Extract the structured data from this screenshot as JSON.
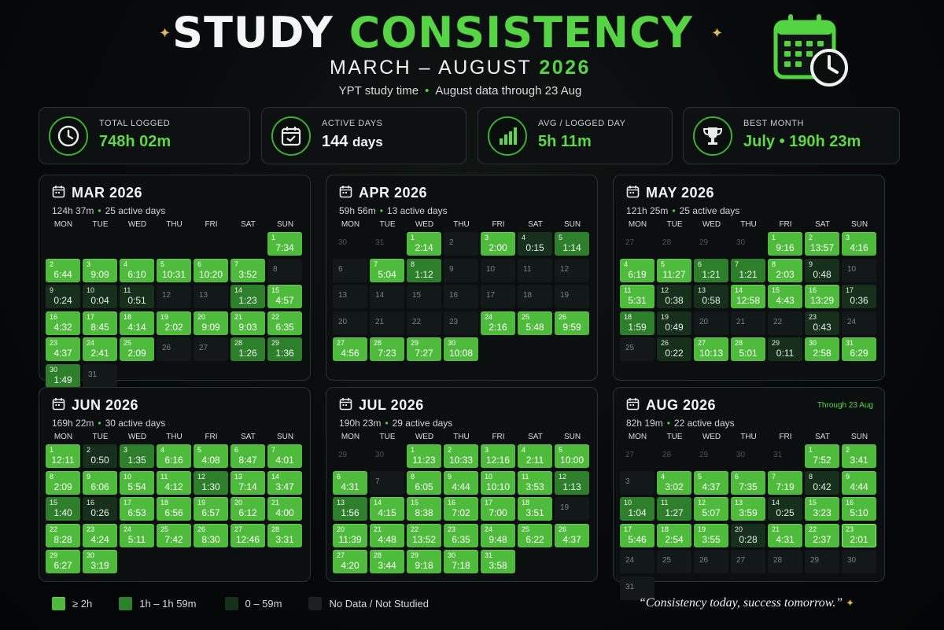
{
  "header": {
    "title_white": "STUDY",
    "title_green": "CONSISTENCY",
    "subtitle_text": "MARCH – AUGUST",
    "subtitle_year": "2026",
    "tagline_a": "YPT study time",
    "tagline_dot": "•",
    "tagline_b": "August data through 23 Aug"
  },
  "icons": {
    "sparkle": "✦"
  },
  "colors": {
    "accent": "#57d445",
    "level_2h_plus": "#4fbb3c",
    "level_1h": "#2e7f2b",
    "level_under_1h": "#17301b",
    "level_none": "#131919"
  },
  "stats": [
    {
      "label": "TOTAL LOGGED",
      "value": "748h 02m",
      "icon": "clock-icon",
      "style": "green"
    },
    {
      "label": "ACTIVE DAYS",
      "value": "144",
      "unit": "days",
      "icon": "calendar-check-icon",
      "style": "white"
    },
    {
      "label": "AVG / LOGGED DAY",
      "value": "5h 11m",
      "icon": "bar-chart-icon",
      "style": "green"
    },
    {
      "label": "BEST MONTH",
      "value": "July • 190h 23m",
      "icon": "trophy-icon",
      "style": "green"
    }
  ],
  "weekdays": [
    "MON",
    "TUE",
    "WED",
    "THU",
    "FRI",
    "SAT",
    "SUN"
  ],
  "months": [
    {
      "name": "MAR 2026",
      "total": "124h 37m",
      "active": "25 active days",
      "note": "",
      "cells": [
        {
          "d": "",
          "t": "",
          "l": "x"
        },
        {
          "d": "",
          "t": "",
          "l": "x"
        },
        {
          "d": "",
          "t": "",
          "l": "x"
        },
        {
          "d": "",
          "t": "",
          "l": "x"
        },
        {
          "d": "",
          "t": "",
          "l": "x"
        },
        {
          "d": "",
          "t": "",
          "l": "x"
        },
        {
          "d": "1",
          "t": "7:34",
          "l": 3
        },
        {
          "d": "2",
          "t": "6:44",
          "l": 3
        },
        {
          "d": "3",
          "t": "9:09",
          "l": 3
        },
        {
          "d": "4",
          "t": "6:10",
          "l": 3
        },
        {
          "d": "5",
          "t": "10:31",
          "l": 3
        },
        {
          "d": "6",
          "t": "10:20",
          "l": 3
        },
        {
          "d": "7",
          "t": "3:52",
          "l": 3
        },
        {
          "d": "8",
          "t": "",
          "l": 0
        },
        {
          "d": "9",
          "t": "0:24",
          "l": 1
        },
        {
          "d": "10",
          "t": "0:04",
          "l": 1
        },
        {
          "d": "11",
          "t": "0:51",
          "l": 1
        },
        {
          "d": "12",
          "t": "",
          "l": 0
        },
        {
          "d": "13",
          "t": "",
          "l": 0
        },
        {
          "d": "14",
          "t": "1:23",
          "l": 2
        },
        {
          "d": "15",
          "t": "4:57",
          "l": 3
        },
        {
          "d": "16",
          "t": "4:32",
          "l": 3
        },
        {
          "d": "17",
          "t": "8:45",
          "l": 3
        },
        {
          "d": "18",
          "t": "4:14",
          "l": 3
        },
        {
          "d": "19",
          "t": "2:02",
          "l": 3
        },
        {
          "d": "20",
          "t": "9:09",
          "l": 3
        },
        {
          "d": "21",
          "t": "9:03",
          "l": 3
        },
        {
          "d": "22",
          "t": "6:35",
          "l": 3
        },
        {
          "d": "23",
          "t": "4:37",
          "l": 3
        },
        {
          "d": "24",
          "t": "2:41",
          "l": 3
        },
        {
          "d": "25",
          "t": "2:09",
          "l": 3
        },
        {
          "d": "26",
          "t": "",
          "l": 0
        },
        {
          "d": "27",
          "t": "",
          "l": 0
        },
        {
          "d": "28",
          "t": "1:26",
          "l": 2
        },
        {
          "d": "29",
          "t": "1:36",
          "l": 2
        },
        {
          "d": "30",
          "t": "1:49",
          "l": 2
        },
        {
          "d": "31",
          "t": "",
          "l": 0
        }
      ]
    },
    {
      "name": "APR 2026",
      "total": "59h 56m",
      "active": "13 active days",
      "note": "",
      "cells": [
        {
          "d": "30",
          "t": "",
          "l": "x"
        },
        {
          "d": "31",
          "t": "",
          "l": "x"
        },
        {
          "d": "1",
          "t": "2:14",
          "l": 3
        },
        {
          "d": "2",
          "t": "",
          "l": 0
        },
        {
          "d": "3",
          "t": "2:00",
          "l": 3
        },
        {
          "d": "4",
          "t": "0:15",
          "l": 1
        },
        {
          "d": "5",
          "t": "1:14",
          "l": 2
        },
        {
          "d": "6",
          "t": "",
          "l": 0
        },
        {
          "d": "7",
          "t": "5:04",
          "l": 3
        },
        {
          "d": "8",
          "t": "1:12",
          "l": 2
        },
        {
          "d": "9",
          "t": "",
          "l": 0
        },
        {
          "d": "10",
          "t": "",
          "l": 0
        },
        {
          "d": "11",
          "t": "",
          "l": 0
        },
        {
          "d": "12",
          "t": "",
          "l": 0
        },
        {
          "d": "13",
          "t": "",
          "l": 0
        },
        {
          "d": "14",
          "t": "",
          "l": 0
        },
        {
          "d": "15",
          "t": "",
          "l": 0
        },
        {
          "d": "16",
          "t": "",
          "l": 0
        },
        {
          "d": "17",
          "t": "",
          "l": 0
        },
        {
          "d": "18",
          "t": "",
          "l": 0
        },
        {
          "d": "19",
          "t": "",
          "l": 0
        },
        {
          "d": "20",
          "t": "",
          "l": 0
        },
        {
          "d": "21",
          "t": "",
          "l": 0
        },
        {
          "d": "22",
          "t": "",
          "l": 0
        },
        {
          "d": "23",
          "t": "",
          "l": 0
        },
        {
          "d": "24",
          "t": "2:16",
          "l": 3
        },
        {
          "d": "25",
          "t": "5:48",
          "l": 3
        },
        {
          "d": "26",
          "t": "9:59",
          "l": 3
        },
        {
          "d": "27",
          "t": "4:56",
          "l": 3
        },
        {
          "d": "28",
          "t": "7:23",
          "l": 3
        },
        {
          "d": "29",
          "t": "7:27",
          "l": 3
        },
        {
          "d": "30",
          "t": "10:08",
          "l": 3
        }
      ]
    },
    {
      "name": "MAY 2026",
      "total": "121h 25m",
      "active": "25 active days",
      "note": "",
      "cells": [
        {
          "d": "27",
          "t": "",
          "l": "x"
        },
        {
          "d": "28",
          "t": "",
          "l": "x"
        },
        {
          "d": "29",
          "t": "",
          "l": "x"
        },
        {
          "d": "30",
          "t": "",
          "l": "x"
        },
        {
          "d": "1",
          "t": "9:16",
          "l": 3
        },
        {
          "d": "2",
          "t": "13:57",
          "l": 3
        },
        {
          "d": "3",
          "t": "4:16",
          "l": 3
        },
        {
          "d": "4",
          "t": "6:19",
          "l": 3
        },
        {
          "d": "5",
          "t": "11:27",
          "l": 3
        },
        {
          "d": "6",
          "t": "1:21",
          "l": 2
        },
        {
          "d": "7",
          "t": "1:21",
          "l": 2
        },
        {
          "d": "8",
          "t": "2:03",
          "l": 3
        },
        {
          "d": "9",
          "t": "0:48",
          "l": 1
        },
        {
          "d": "10",
          "t": "",
          "l": 0
        },
        {
          "d": "11",
          "t": "5:31",
          "l": 3
        },
        {
          "d": "12",
          "t": "0:38",
          "l": 1
        },
        {
          "d": "13",
          "t": "0:58",
          "l": 1
        },
        {
          "d": "14",
          "t": "12:58",
          "l": 3
        },
        {
          "d": "15",
          "t": "4:43",
          "l": 3
        },
        {
          "d": "16",
          "t": "13:29",
          "l": 3
        },
        {
          "d": "17",
          "t": "0:36",
          "l": 1
        },
        {
          "d": "18",
          "t": "1:59",
          "l": 2
        },
        {
          "d": "19",
          "t": "0:49",
          "l": 1
        },
        {
          "d": "20",
          "t": "",
          "l": 0
        },
        {
          "d": "21",
          "t": "",
          "l": 0
        },
        {
          "d": "22",
          "t": "",
          "l": 0
        },
        {
          "d": "23",
          "t": "0:43",
          "l": 1
        },
        {
          "d": "24",
          "t": "",
          "l": 0
        },
        {
          "d": "25",
          "t": "",
          "l": 0
        },
        {
          "d": "26",
          "t": "0:22",
          "l": 1
        },
        {
          "d": "27",
          "t": "10:13",
          "l": 3
        },
        {
          "d": "28",
          "t": "5:01",
          "l": 3
        },
        {
          "d": "29",
          "t": "0:11",
          "l": 1
        },
        {
          "d": "30",
          "t": "2:58",
          "l": 3
        },
        {
          "d": "31",
          "t": "6:29",
          "l": 3
        }
      ]
    },
    {
      "name": "JUN 2026",
      "total": "169h 22m",
      "active": "30 active days",
      "note": "",
      "cells": [
        {
          "d": "1",
          "t": "12:11",
          "l": 3
        },
        {
          "d": "2",
          "t": "0:50",
          "l": 1
        },
        {
          "d": "3",
          "t": "1:35",
          "l": 2
        },
        {
          "d": "4",
          "t": "6:16",
          "l": 3
        },
        {
          "d": "5",
          "t": "4:08",
          "l": 3
        },
        {
          "d": "6",
          "t": "8:47",
          "l": 3
        },
        {
          "d": "7",
          "t": "4:01",
          "l": 3
        },
        {
          "d": "8",
          "t": "2:09",
          "l": 3
        },
        {
          "d": "9",
          "t": "6:06",
          "l": 3
        },
        {
          "d": "10",
          "t": "5:54",
          "l": 3
        },
        {
          "d": "11",
          "t": "4:12",
          "l": 3
        },
        {
          "d": "12",
          "t": "1:30",
          "l": 2
        },
        {
          "d": "13",
          "t": "7:14",
          "l": 3
        },
        {
          "d": "14",
          "t": "3:47",
          "l": 3
        },
        {
          "d": "15",
          "t": "1:40",
          "l": 2
        },
        {
          "d": "16",
          "t": "0:26",
          "l": 1
        },
        {
          "d": "17",
          "t": "6:53",
          "l": 3
        },
        {
          "d": "18",
          "t": "6:56",
          "l": 3
        },
        {
          "d": "19",
          "t": "6:57",
          "l": 3
        },
        {
          "d": "20",
          "t": "6:12",
          "l": 3
        },
        {
          "d": "21",
          "t": "4:00",
          "l": 3
        },
        {
          "d": "22",
          "t": "8:28",
          "l": 3
        },
        {
          "d": "23",
          "t": "4:24",
          "l": 3
        },
        {
          "d": "24",
          "t": "5:11",
          "l": 3
        },
        {
          "d": "25",
          "t": "7:42",
          "l": 3
        },
        {
          "d": "26",
          "t": "8:30",
          "l": 3
        },
        {
          "d": "27",
          "t": "12:46",
          "l": 3
        },
        {
          "d": "28",
          "t": "3:31",
          "l": 3
        },
        {
          "d": "29",
          "t": "6:27",
          "l": 3
        },
        {
          "d": "30",
          "t": "3:19",
          "l": 3
        }
      ]
    },
    {
      "name": "JUL 2026",
      "total": "190h 23m",
      "active": "29 active days",
      "note": "",
      "cells": [
        {
          "d": "29",
          "t": "",
          "l": "x"
        },
        {
          "d": "30",
          "t": "",
          "l": "x"
        },
        {
          "d": "1",
          "t": "11:23",
          "l": 3
        },
        {
          "d": "2",
          "t": "10:33",
          "l": 3
        },
        {
          "d": "3",
          "t": "12:16",
          "l": 3
        },
        {
          "d": "4",
          "t": "2:11",
          "l": 3
        },
        {
          "d": "5",
          "t": "10:00",
          "l": 3
        },
        {
          "d": "6",
          "t": "4:31",
          "l": 3
        },
        {
          "d": "7",
          "t": "",
          "l": 0
        },
        {
          "d": "8",
          "t": "6:05",
          "l": 3
        },
        {
          "d": "9",
          "t": "4:44",
          "l": 3
        },
        {
          "d": "10",
          "t": "10:10",
          "l": 3
        },
        {
          "d": "11",
          "t": "3:53",
          "l": 3
        },
        {
          "d": "12",
          "t": "1:13",
          "l": 2
        },
        {
          "d": "13",
          "t": "1:56",
          "l": 2
        },
        {
          "d": "14",
          "t": "4:15",
          "l": 3
        },
        {
          "d": "15",
          "t": "8:38",
          "l": 3
        },
        {
          "d": "16",
          "t": "7:02",
          "l": 3
        },
        {
          "d": "17",
          "t": "7:00",
          "l": 3
        },
        {
          "d": "18",
          "t": "3:51",
          "l": 3
        },
        {
          "d": "19",
          "t": "",
          "l": 0
        },
        {
          "d": "20",
          "t": "11:39",
          "l": 3
        },
        {
          "d": "21",
          "t": "4:48",
          "l": 3
        },
        {
          "d": "22",
          "t": "13:52",
          "l": 3
        },
        {
          "d": "23",
          "t": "6:35",
          "l": 3
        },
        {
          "d": "24",
          "t": "9:48",
          "l": 3
        },
        {
          "d": "25",
          "t": "6:22",
          "l": 3
        },
        {
          "d": "26",
          "t": "4:37",
          "l": 3
        },
        {
          "d": "27",
          "t": "4:20",
          "l": 3
        },
        {
          "d": "28",
          "t": "3:44",
          "l": 3
        },
        {
          "d": "29",
          "t": "9:18",
          "l": 3
        },
        {
          "d": "30",
          "t": "7:18",
          "l": 3
        },
        {
          "d": "31",
          "t": "3:58",
          "l": 3
        }
      ]
    },
    {
      "name": "AUG 2026",
      "total": "82h 19m",
      "active": "22 active days",
      "note": "Through 23 Aug",
      "cells": [
        {
          "d": "27",
          "t": "",
          "l": "x"
        },
        {
          "d": "28",
          "t": "",
          "l": "x"
        },
        {
          "d": "29",
          "t": "",
          "l": "x"
        },
        {
          "d": "30",
          "t": "",
          "l": "x"
        },
        {
          "d": "31",
          "t": "",
          "l": "x"
        },
        {
          "d": "1",
          "t": "7:52",
          "l": 3
        },
        {
          "d": "2",
          "t": "3:41",
          "l": 3
        },
        {
          "d": "3",
          "t": "",
          "l": 0
        },
        {
          "d": "4",
          "t": "3:02",
          "l": 3
        },
        {
          "d": "5",
          "t": "4:37",
          "l": 3
        },
        {
          "d": "6",
          "t": "7:35",
          "l": 3
        },
        {
          "d": "7",
          "t": "7:19",
          "l": 3
        },
        {
          "d": "8",
          "t": "0:42",
          "l": 1
        },
        {
          "d": "9",
          "t": "4:44",
          "l": 3
        },
        {
          "d": "10",
          "t": "1:04",
          "l": 2
        },
        {
          "d": "11",
          "t": "1:27",
          "l": 2
        },
        {
          "d": "12",
          "t": "5:07",
          "l": 3
        },
        {
          "d": "13",
          "t": "3:59",
          "l": 3
        },
        {
          "d": "14",
          "t": "0:25",
          "l": 1
        },
        {
          "d": "15",
          "t": "3:23",
          "l": 3
        },
        {
          "d": "16",
          "t": "5:10",
          "l": 3
        },
        {
          "d": "17",
          "t": "5:46",
          "l": 3
        },
        {
          "d": "18",
          "t": "2:54",
          "l": 3
        },
        {
          "d": "19",
          "t": "3:55",
          "l": 3
        },
        {
          "d": "20",
          "t": "0:28",
          "l": 1
        },
        {
          "d": "21",
          "t": "4:31",
          "l": 3
        },
        {
          "d": "22",
          "t": "2:37",
          "l": 3
        },
        {
          "d": "23",
          "t": "2:01",
          "l": 3,
          "hl": true
        },
        {
          "d": "24",
          "t": "",
          "l": 0
        },
        {
          "d": "25",
          "t": "",
          "l": 0
        },
        {
          "d": "26",
          "t": "",
          "l": 0
        },
        {
          "d": "27",
          "t": "",
          "l": 0
        },
        {
          "d": "28",
          "t": "",
          "l": 0
        },
        {
          "d": "29",
          "t": "",
          "l": 0
        },
        {
          "d": "30",
          "t": "",
          "l": 0
        },
        {
          "d": "31",
          "t": "",
          "l": 0
        }
      ]
    }
  ],
  "legend": [
    {
      "label": "≥ 2h",
      "level": 3
    },
    {
      "label": "1h – 1h 59m",
      "level": 2
    },
    {
      "label": "0 – 59m",
      "level": 1
    },
    {
      "label": "No Data / Not Studied",
      "level": 0
    }
  ],
  "quote": "“Consistency today, success tomorrow.”"
}
